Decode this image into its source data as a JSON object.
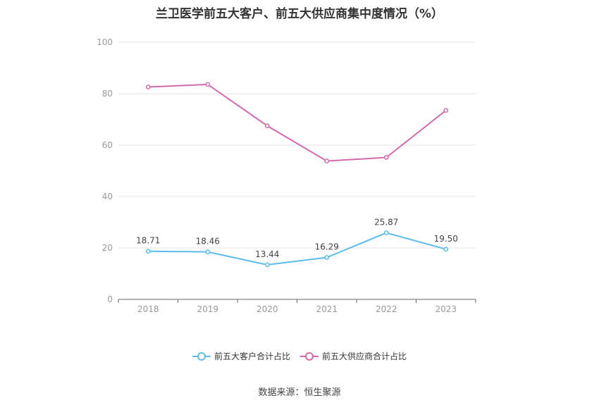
{
  "title": "兰卫医学前五大客户、前五大供应商集中度情况（%）",
  "source": "数据来源：恒生聚源",
  "chart_data": {
    "type": "line",
    "categories": [
      "2018",
      "2019",
      "2020",
      "2021",
      "2022",
      "2023"
    ],
    "ylim": [
      0,
      100
    ],
    "yticks": [
      0,
      20,
      40,
      60,
      80,
      100
    ],
    "grid": true,
    "legend_position": "bottom",
    "series": [
      {
        "name": "前五大客户合计占比",
        "color": "#5bbcee",
        "values": [
          18.71,
          18.46,
          13.44,
          16.29,
          25.87,
          19.5
        ],
        "labels": [
          "18.71",
          "18.46",
          "13.44",
          "16.29",
          "25.87",
          "19.50"
        ],
        "show_labels": true
      },
      {
        "name": "前五大供应商合计占比",
        "color": "#d36aad",
        "values": [
          82.6,
          83.6,
          67.5,
          53.8,
          55.2,
          73.5
        ],
        "show_labels": false
      }
    ]
  }
}
